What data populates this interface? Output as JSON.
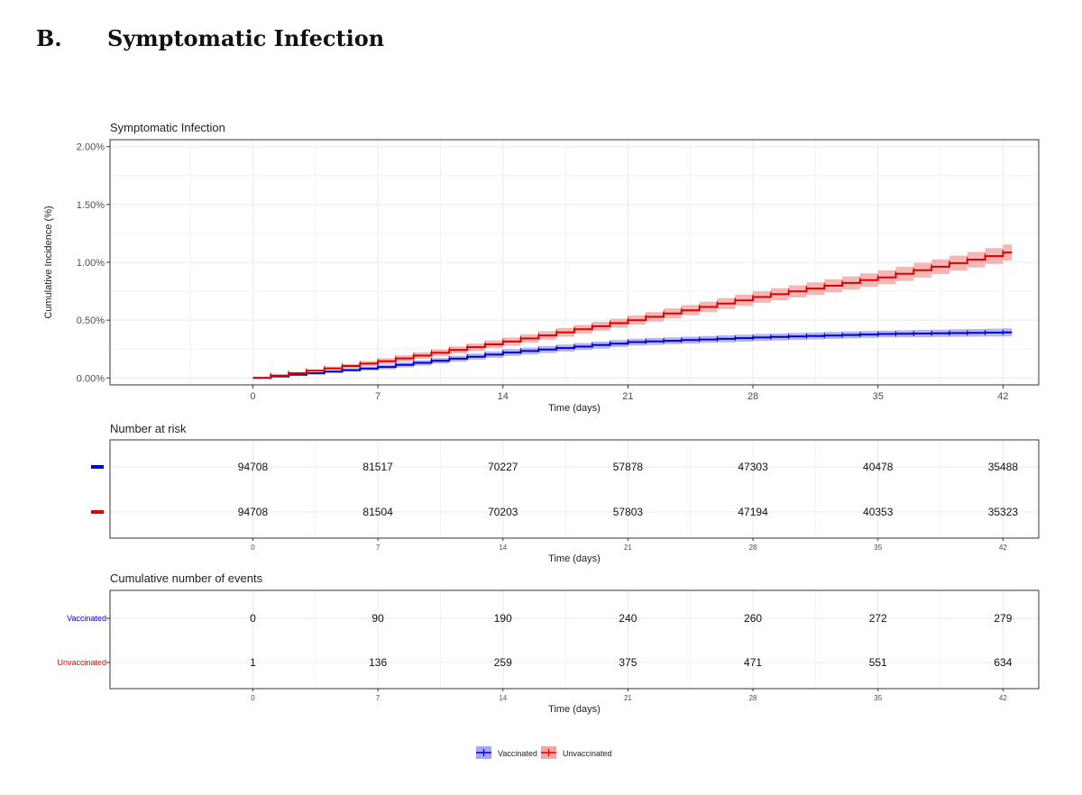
{
  "heading": {
    "letter": "B.",
    "title": "Symptomatic Infection"
  },
  "colors": {
    "vaccinated": "#0000cc",
    "vaccinated_band": "#8f8ff0",
    "unvaccinated": "#dd0000",
    "unvaccinated_band": "#f08f8f",
    "grid": "#ebebeb",
    "panel_border": "#333333"
  },
  "chart_data": [
    {
      "type": "line",
      "title": "Symptomatic Infection",
      "xlabel": "Time (days)",
      "ylabel": "Cumulative Incidence (%)",
      "xlim": [
        -8,
        44
      ],
      "ylim": [
        -0.06,
        2.06
      ],
      "x_ticks": [
        0,
        7,
        14,
        21,
        28,
        35,
        42
      ],
      "y_ticks": [
        0,
        0.5,
        1.0,
        1.5,
        2.0
      ],
      "y_tick_labels": [
        "0.00%",
        "0.50%",
        "1.00%",
        "1.50%",
        "2.00%"
      ],
      "grid": true,
      "step": true,
      "series": [
        {
          "name": "Vaccinated",
          "color": "#0000cc",
          "x": [
            0,
            7,
            14,
            21,
            28,
            35,
            42.5
          ],
          "y": [
            0.0,
            0.095,
            0.22,
            0.31,
            0.35,
            0.38,
            0.395
          ],
          "ci_low": [
            0.0,
            0.075,
            0.19,
            0.28,
            0.32,
            0.35,
            0.36
          ],
          "ci_high": [
            0.0,
            0.115,
            0.25,
            0.34,
            0.38,
            0.41,
            0.43
          ]
        },
        {
          "name": "Unvaccinated",
          "color": "#dd0000",
          "x": [
            0,
            7,
            14,
            21,
            28,
            35,
            42.5
          ],
          "y": [
            0.0,
            0.145,
            0.315,
            0.5,
            0.7,
            0.87,
            1.1
          ],
          "ci_low": [
            0.0,
            0.12,
            0.28,
            0.46,
            0.65,
            0.81,
            1.03
          ],
          "ci_high": [
            0.0,
            0.17,
            0.35,
            0.54,
            0.75,
            0.93,
            1.17
          ]
        }
      ]
    },
    {
      "type": "table",
      "title": "Number at risk",
      "xlabel": "Time (days)",
      "x_ticks": [
        0,
        7,
        14,
        21,
        28,
        35,
        42
      ],
      "rows": [
        {
          "name": "Vaccinated",
          "label": "",
          "values": [
            "94708",
            "81517",
            "70227",
            "57878",
            "47303",
            "40478",
            "35488"
          ]
        },
        {
          "name": "Unvaccinated",
          "label": "",
          "values": [
            "94708",
            "81504",
            "70203",
            "57803",
            "47194",
            "40353",
            "35323"
          ]
        }
      ]
    },
    {
      "type": "table",
      "title": "Cumulative number of events",
      "xlabel": "Time (days)",
      "x_ticks": [
        0,
        7,
        14,
        21,
        28,
        35,
        42
      ],
      "rows": [
        {
          "name": "Vaccinated",
          "label": "Vaccinated",
          "values": [
            "0",
            "90",
            "190",
            "240",
            "260",
            "272",
            "279"
          ]
        },
        {
          "name": "Unvaccinated",
          "label": "Unvaccinated",
          "values": [
            "1",
            "136",
            "259",
            "375",
            "471",
            "551",
            "634"
          ]
        }
      ]
    }
  ],
  "legend": {
    "position": "bottom-center",
    "items": [
      {
        "label": "Vaccinated",
        "color": "#0000cc",
        "band": "#8f8ff0"
      },
      {
        "label": "Unvaccinated",
        "color": "#dd0000",
        "band": "#f08f8f"
      }
    ]
  }
}
